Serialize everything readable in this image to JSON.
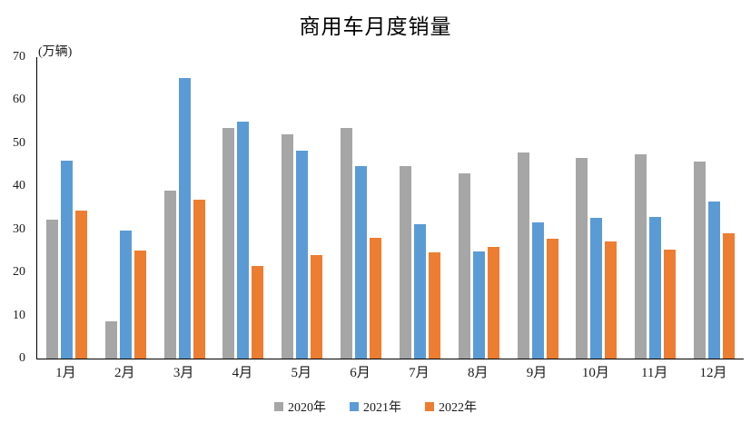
{
  "chart_data": {
    "type": "bar",
    "title": "商用车月度销量",
    "ylabel": "(万辆)",
    "xlabel": "",
    "ylim": [
      0,
      70
    ],
    "y_ticks": [
      0,
      10,
      20,
      30,
      40,
      50,
      60,
      70
    ],
    "grid": false,
    "legend_position": "bottom",
    "axis_color": "#000000",
    "background_color": "#ffffff",
    "categories": [
      "1月",
      "2月",
      "3月",
      "4月",
      "5月",
      "6月",
      "7月",
      "8月",
      "9月",
      "10月",
      "11月",
      "12月"
    ],
    "series": [
      {
        "name": "2020年",
        "color": "#A6A6A6",
        "values": [
          32.2,
          8.6,
          39.0,
          53.5,
          52.0,
          53.6,
          44.7,
          43.0,
          47.8,
          46.5,
          47.4,
          45.8
        ]
      },
      {
        "name": "2021年",
        "color": "#5B9BD5",
        "values": [
          45.9,
          29.8,
          65.2,
          55.0,
          48.2,
          44.6,
          31.2,
          24.8,
          31.7,
          32.6,
          33.0,
          36.4
        ]
      },
      {
        "name": "2022年",
        "color": "#ED7D31",
        "values": [
          34.4,
          25.0,
          37.0,
          21.6,
          24.0,
          28.1,
          24.6,
          25.9,
          27.8,
          27.2,
          25.4,
          29.2
        ]
      }
    ]
  }
}
